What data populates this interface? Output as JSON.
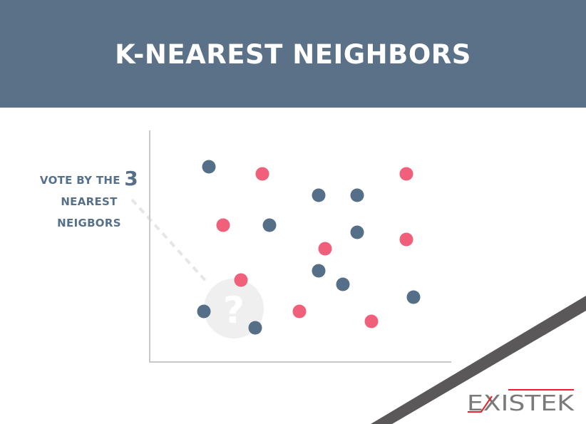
{
  "title": "K-NEAREST NEIGHBORS",
  "label": {
    "line1": "VOTE BY THE",
    "k": "3",
    "line2": "NEAREST",
    "line3": "NEIGBORS"
  },
  "query_symbol": "?",
  "logo": "EXISTEK",
  "colors": {
    "header": "#5a7187",
    "blue": "#566f88",
    "pink": "#f0607a",
    "query": "#efefef",
    "stripe": "#5a5858",
    "logo_red": "#e8202a",
    "logo_gray": "#7a7a7a"
  },
  "points": [
    "blue",
    "pink",
    "pink",
    "blue",
    "blue",
    "blue",
    "pink",
    "blue",
    "pink",
    "blue",
    "pink",
    "pink",
    "blue",
    "blue",
    "blue",
    "blue",
    "pink",
    "pink"
  ]
}
